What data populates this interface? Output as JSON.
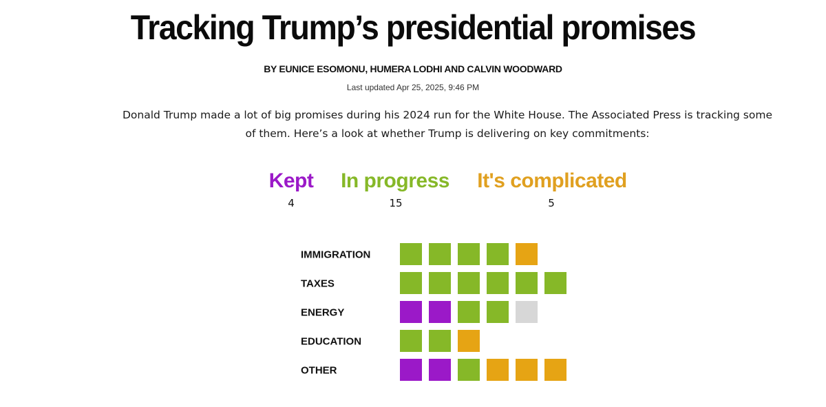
{
  "article": {
    "headline": "Tracking Trump’s presidential promises",
    "byline": "BY EUNICE ESOMONU, HUMERA LODHI AND CALVIN WOODWARD",
    "updated": "Last updated Apr 25, 2025, 9:46 PM",
    "intro": "Donald Trump made a lot of big promises during his 2024 run for the White House. The Associated Press is tracking some of them. Here’s a look at whether Trump is delivering on key commitments:"
  },
  "legend": [
    {
      "label": "Kept",
      "count": "4",
      "color": "#9b19c8"
    },
    {
      "label": "In progress",
      "count": "15",
      "color": "#86b828"
    },
    {
      "label": "It's complicated",
      "count": "5",
      "color": "#e0a020"
    }
  ],
  "chart_data": {
    "type": "table",
    "status_colors": {
      "kept": "#9b19c8",
      "in_progress": "#86b828",
      "complicated": "#e6a414",
      "other": "#d7d7d7"
    },
    "rows": [
      {
        "category": "IMMIGRATION",
        "statuses": [
          "in_progress",
          "in_progress",
          "in_progress",
          "in_progress",
          "complicated"
        ]
      },
      {
        "category": "TAXES",
        "statuses": [
          "in_progress",
          "in_progress",
          "in_progress",
          "in_progress",
          "in_progress",
          "in_progress"
        ]
      },
      {
        "category": "ENERGY",
        "statuses": [
          "kept",
          "kept",
          "in_progress",
          "in_progress",
          "other"
        ]
      },
      {
        "category": "EDUCATION",
        "statuses": [
          "in_progress",
          "in_progress",
          "complicated"
        ]
      },
      {
        "category": "OTHER",
        "statuses": [
          "kept",
          "kept",
          "in_progress",
          "complicated",
          "complicated",
          "complicated"
        ]
      }
    ]
  }
}
